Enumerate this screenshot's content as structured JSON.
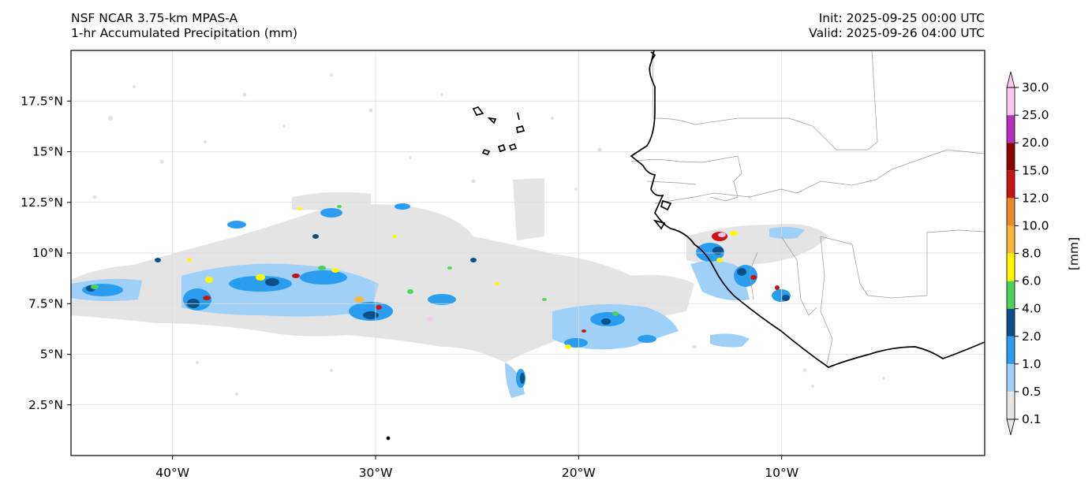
{
  "header": {
    "left_line1": "NSF NCAR 3.75-km MPAS-A",
    "left_line2": "1-hr Accumulated Precipitation (mm)",
    "right_line1": "Init: 2025-09-25 00:00 UTC",
    "right_line2": "Valid: 2025-09-26 04:00 UTC"
  },
  "map": {
    "lon_range": [
      -45,
      0
    ],
    "lat_range": [
      0,
      20
    ],
    "lat_ticks": [
      "17.5°N",
      "15°N",
      "12.5°N",
      "10°N",
      "7.5°N",
      "5°N",
      "2.5°N"
    ],
    "lat_tick_values": [
      17.5,
      15,
      12.5,
      10,
      7.5,
      5,
      2.5
    ],
    "lon_ticks": [
      "40°W",
      "30°W",
      "20°W",
      "10°W"
    ],
    "lon_tick_values": [
      -40,
      -30,
      -20,
      -10
    ],
    "gridlines": true
  },
  "colorbar": {
    "unit_label": "[mm]",
    "levels": [
      "0.1",
      "0.5",
      "1.0",
      "2.0",
      "4.0",
      "6.0",
      "8.0",
      "10.0",
      "12.0",
      "15.0",
      "20.0",
      "25.0",
      "30.0"
    ],
    "colors": [
      "#e6e6e6",
      "#9fd0f8",
      "#2a9df0",
      "#0a4f86",
      "#4ed15a",
      "#fff700",
      "#f8b83c",
      "#ea8a24",
      "#c81414",
      "#8f0000",
      "#b530b8",
      "#f8c8f2"
    ],
    "extend": "both"
  }
}
